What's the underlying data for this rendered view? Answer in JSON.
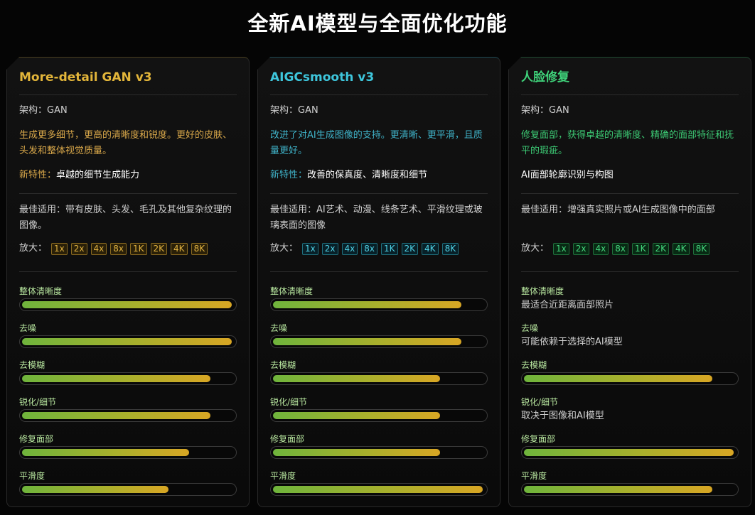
{
  "page": {
    "title": "全新AI模型与全面优化功能"
  },
  "cards": [
    {
      "title": "More-detail GAN v3",
      "arch": "架构：GAN",
      "desc": "生成更多细节，更高的清晰度和锐度。更好的皮肤、头发和整体视觉质量。",
      "feature_label": "新特性：",
      "feature_value": "卓越的细节生成能力",
      "best": "最佳适用：带有皮肤、头发、毛孔及其他复杂纹理的图像。",
      "scale_label": "放大：",
      "scales": [
        "1x",
        "2x",
        "4x",
        "8x",
        "1K",
        "2K",
        "4K",
        "8K"
      ],
      "metrics": [
        {
          "label": "整体清晰度",
          "level": 0.99
        },
        {
          "label": "去噪",
          "level": 0.99
        },
        {
          "label": "去模糊",
          "level": 0.89
        },
        {
          "label": "锐化/细节",
          "level": 0.89
        },
        {
          "label": "修复面部",
          "level": 0.79
        },
        {
          "label": "平滑度",
          "level": 0.69
        }
      ]
    },
    {
      "title": "AIGCsmooth v3",
      "arch": "架构：GAN",
      "desc": "改进了对AI生成图像的支持。更清晰、更平滑，且质量更好。",
      "feature_label": "新特性：",
      "feature_value": "改善的保真度、清晰度和细节",
      "best": "最佳适用：AI艺术、动漫、线条艺术、平滑纹理或玻璃表面的图像",
      "scale_label": "放大：",
      "scales": [
        "1x",
        "2x",
        "4x",
        "8x",
        "1K",
        "2K",
        "4K",
        "8K"
      ],
      "metrics": [
        {
          "label": "整体清晰度",
          "level": 0.89
        },
        {
          "label": "去噪",
          "level": 0.89
        },
        {
          "label": "去模糊",
          "level": 0.79
        },
        {
          "label": "锐化/细节",
          "level": 0.79
        },
        {
          "label": "修复面部",
          "level": 0.79
        },
        {
          "label": "平滑度",
          "level": 0.99
        }
      ]
    },
    {
      "title": "人脸修复",
      "arch": "架构：GAN",
      "desc": "修复面部，获得卓越的清晰度、精确的面部特征和抚平的瑕疵。",
      "feature_label": "",
      "feature_value": "AI面部轮廓识别与构图",
      "best": "最佳适用：增强真实照片或AI生成图像中的面部",
      "scale_label": "放大：",
      "scales": [
        "1x",
        "2x",
        "4x",
        "8x",
        "1K",
        "2K",
        "4K",
        "8K"
      ],
      "metrics": [
        {
          "label": "整体清晰度",
          "note": "最适合近距离面部照片"
        },
        {
          "label": "去噪",
          "note": "可能依赖于选择的AI模型"
        },
        {
          "label": "去模糊",
          "level": 0.89
        },
        {
          "label": "锐化/细节",
          "note": "取决于图像和AI模型"
        },
        {
          "label": "修复面部",
          "level": 0.99
        },
        {
          "label": "平滑度",
          "level": 0.89
        }
      ]
    }
  ],
  "colors": {
    "gold": "#e2b53a",
    "cyan": "#3ec6dc",
    "green": "#3fd27a"
  }
}
